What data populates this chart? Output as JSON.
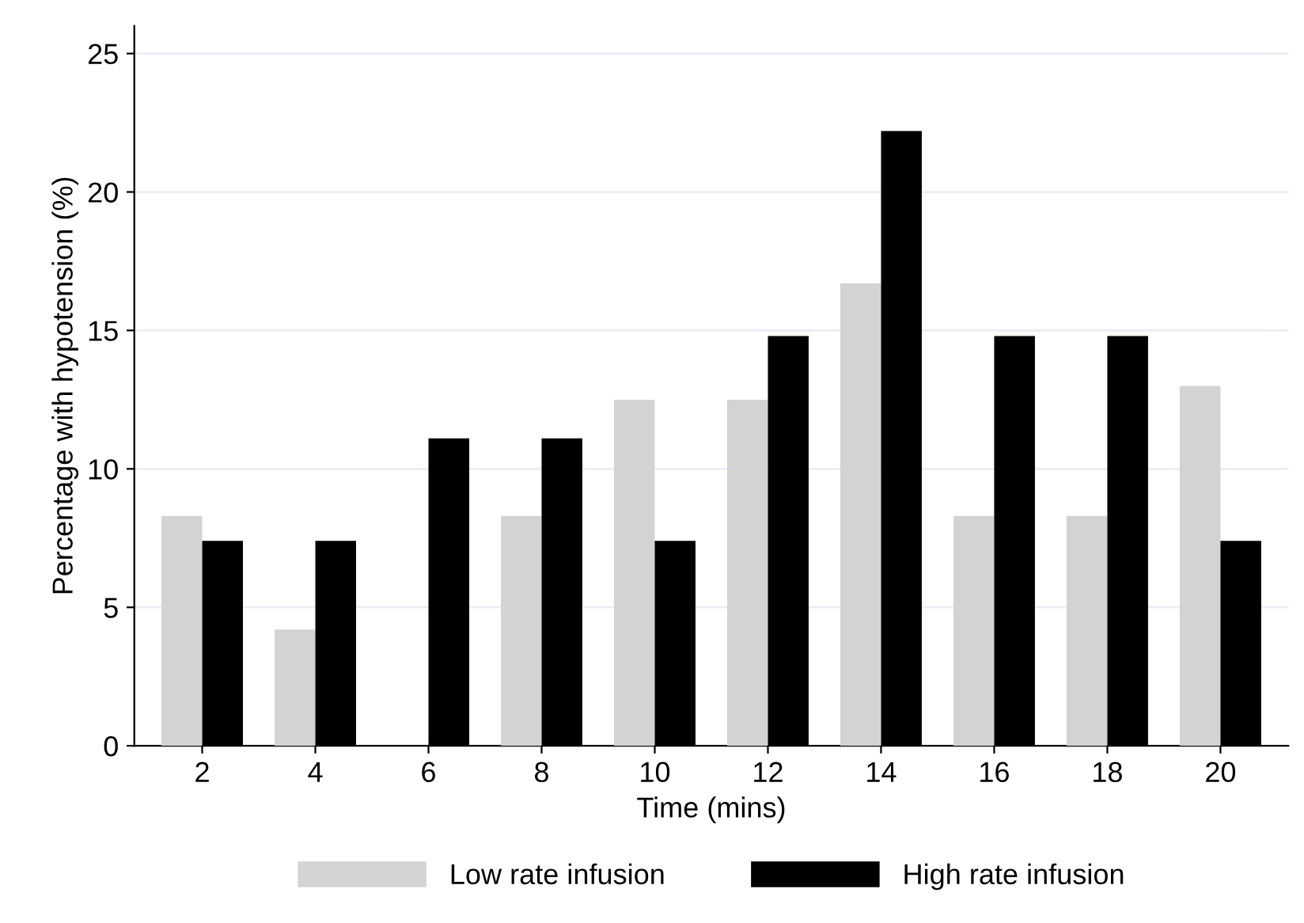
{
  "chart_data": {
    "type": "bar",
    "xlabel": "Time (mins)",
    "ylabel": "Percentage with hypotension (%)",
    "categories": [
      "2",
      "4",
      "6",
      "8",
      "10",
      "12",
      "14",
      "16",
      "18",
      "20"
    ],
    "series": [
      {
        "name": "Low rate infusion",
        "color": "#d3d3d3",
        "values": [
          8.3,
          4.2,
          0,
          8.3,
          12.5,
          12.5,
          16.7,
          8.3,
          8.3,
          13.0
        ]
      },
      {
        "name": "High rate infusion",
        "color": "#000000",
        "values": [
          7.4,
          7.4,
          11.1,
          11.1,
          7.4,
          14.8,
          22.2,
          14.8,
          14.8,
          7.4
        ]
      }
    ],
    "ylim": [
      0,
      26
    ],
    "yticks": [
      0,
      5,
      10,
      15,
      20,
      25
    ],
    "grid": "y",
    "legend": "bottom"
  }
}
